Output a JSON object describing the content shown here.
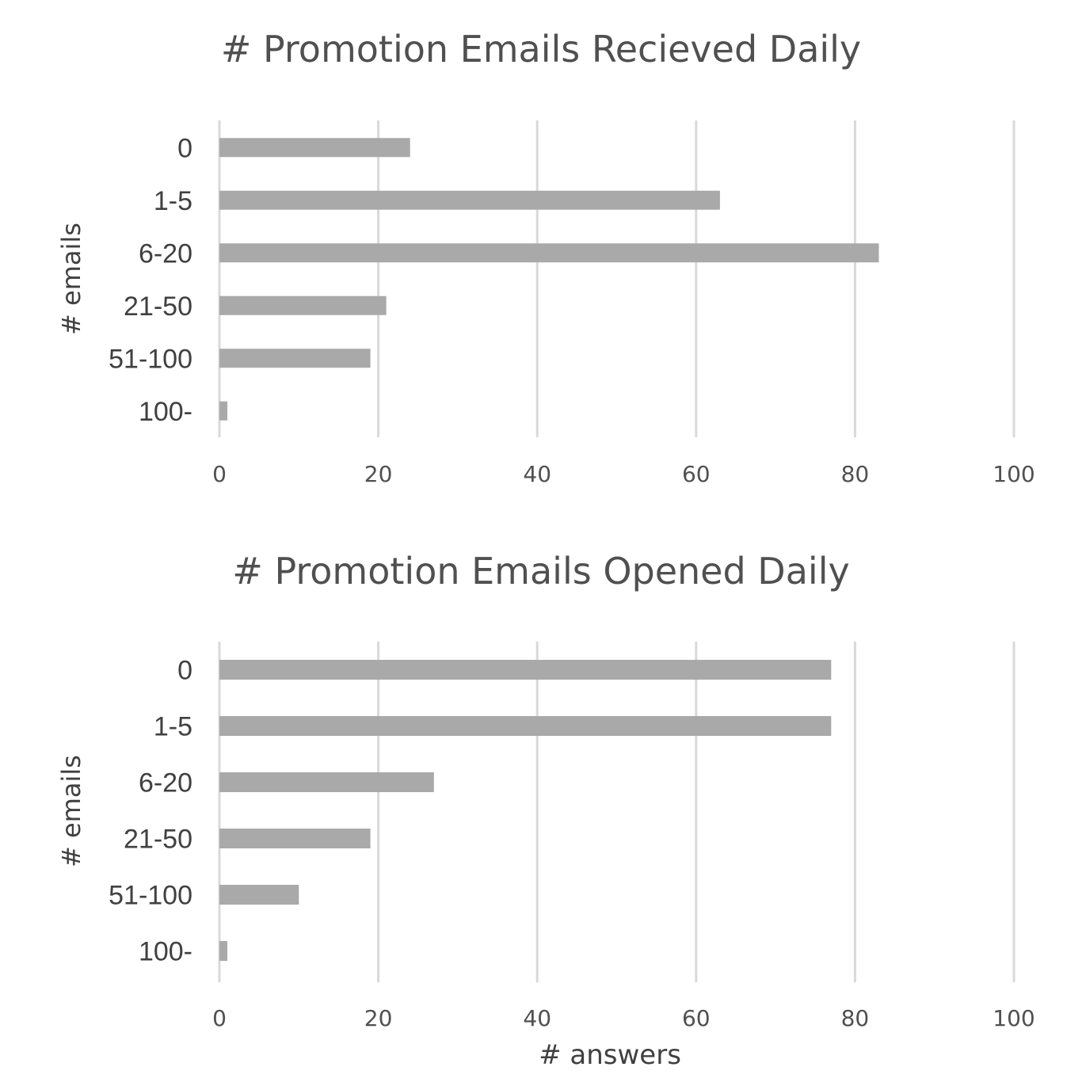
{
  "chart_data": [
    {
      "type": "bar",
      "orientation": "horizontal",
      "title": "# Promotion Emails Recieved Daily",
      "ylabel": "# emails",
      "xlabel": "",
      "categories": [
        "0",
        "1-5",
        "6-20",
        "21-50",
        "51-100",
        "100-"
      ],
      "values": [
        24,
        63,
        83,
        21,
        19,
        1
      ],
      "xlim": [
        0,
        100
      ],
      "xticks": [
        "0",
        "20",
        "40",
        "60",
        "80",
        "100"
      ],
      "grid": "vertical",
      "bar_color": "#a9a9a9"
    },
    {
      "type": "bar",
      "orientation": "horizontal",
      "title": "# Promotion Emails Opened Daily",
      "ylabel": "# emails",
      "xlabel": "# answers",
      "categories": [
        "0",
        "1-5",
        "6-20",
        "21-50",
        "51-100",
        "100-"
      ],
      "values": [
        77,
        77,
        27,
        19,
        10,
        1
      ],
      "xlim": [
        0,
        100
      ],
      "xticks": [
        "0",
        "20",
        "40",
        "60",
        "80",
        "100"
      ],
      "grid": "vertical",
      "bar_color": "#a9a9a9"
    }
  ]
}
